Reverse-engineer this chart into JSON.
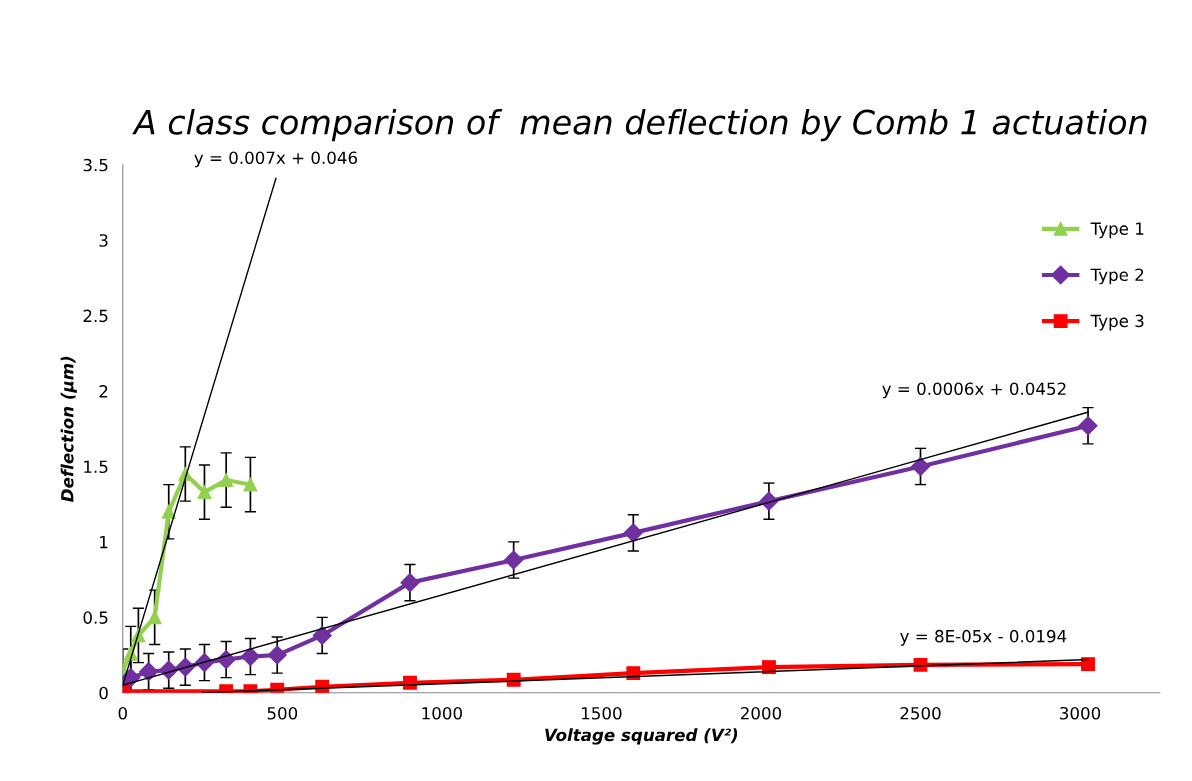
{
  "chart_data": {
    "type": "line",
    "title": "A class comparison of  mean deflection by Comb 1 actuation",
    "xlabel": "Voltage squared (V²)",
    "ylabel": "Deflection (μm)",
    "xlim": [
      0,
      3250
    ],
    "ylim": [
      0,
      3.5
    ],
    "xticks": [
      0,
      500,
      1000,
      1500,
      2000,
      2500,
      3000
    ],
    "yticks": [
      {
        "value": 0,
        "label": "0"
      },
      0.5,
      {
        "value": 1,
        "label": "1"
      },
      1.5,
      {
        "value": 2,
        "label": "2"
      },
      2.5,
      {
        "value": 3,
        "label": "3"
      },
      3.5
    ],
    "grid": false,
    "legend": "top right",
    "series": [
      {
        "name": "Type 1",
        "color": "#92d050",
        "marker": "triangle",
        "x": [
          0,
          25,
          49,
          100,
          144,
          196,
          256,
          324,
          400
        ],
        "values": [
          0.15,
          0.26,
          0.38,
          0.5,
          1.2,
          1.45,
          1.33,
          1.41,
          1.38
        ],
        "errors": [
          0.14,
          0.18,
          0.18,
          0.18,
          0.18,
          0.18,
          0.18,
          0.18,
          0.18
        ]
      },
      {
        "name": "Type 2",
        "color": "#7030a0",
        "marker": "diamond",
        "x": [
          0,
          25,
          81,
          144,
          196,
          256,
          324,
          400,
          484,
          625,
          900,
          1225,
          1600,
          2025,
          2500,
          3025
        ],
        "values": [
          0.05,
          0.1,
          0.14,
          0.15,
          0.17,
          0.2,
          0.22,
          0.24,
          0.25,
          0.38,
          0.73,
          0.88,
          1.06,
          1.27,
          1.5,
          1.77
        ],
        "errors": [
          null,
          0.12,
          0.12,
          0.12,
          0.12,
          0.12,
          0.12,
          0.12,
          0.12,
          0.12,
          0.12,
          0.12,
          0.12,
          0.12,
          0.12,
          0.12
        ]
      },
      {
        "name": "Type 3",
        "color": "#ff0000",
        "marker": "square",
        "x": [
          0,
          324,
          400,
          484,
          625,
          900,
          1225,
          1600,
          2025,
          2500,
          3025
        ],
        "values": [
          0.01,
          0.01,
          0.01,
          0.02,
          0.04,
          0.066,
          0.086,
          0.13,
          0.17,
          0.185,
          0.19
        ]
      },
      {
        "color": "#000000",
        "marker": "none",
        "x": [
          0,
          480
        ],
        "values": [
          0.05,
          3.41
        ]
      },
      {
        "color": "#000000",
        "marker": "none",
        "x": [
          0,
          3025
        ],
        "values": [
          0.05,
          1.86
        ]
      },
      {
        "color": "#000000",
        "marker": "none",
        "x": [
          250,
          3025
        ],
        "values": [
          0.0,
          0.22
        ]
      }
    ],
    "annotations": [
      "y = 0.007x + 0.046",
      "y = 0.0006x + 0.0452",
      "y = 8E-05x - 0.0194"
    ]
  }
}
